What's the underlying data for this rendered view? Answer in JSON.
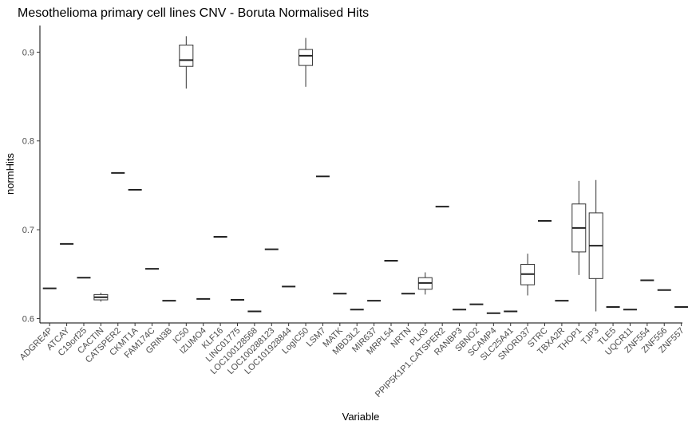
{
  "chart_data": {
    "type": "box",
    "title": "Mesothelioma primary cell lines CNV - Boruta Normalised Hits",
    "xlabel": "Variable",
    "ylabel": "normHits",
    "ylim": [
      0.595,
      0.93
    ],
    "yticks": [
      0.6,
      0.7,
      0.8,
      0.9
    ],
    "ytick_labels": [
      "0.6",
      "0.7",
      "0.8",
      "0.9"
    ],
    "grid": false,
    "categories": [
      "ADGRE4P",
      "ATCAY",
      "C19orf25",
      "CACTIN",
      "CATSPER2",
      "CKMT1A",
      "FAM174C",
      "GRIN3B",
      "IC50",
      "IZUMO4",
      "KLF16",
      "LINC01775",
      "LOC100128568",
      "LOC100288123",
      "LOC101928844",
      "LogIC50",
      "LSM7",
      "MATK",
      "MBD3L2",
      "MIR637",
      "MRPL54",
      "NRTN",
      "PLK5",
      "PPIP5K1P1.CATSPER2",
      "RANBP3",
      "SBNO2",
      "SCAMP4",
      "SLC25A41",
      "SNORD37",
      "STRC",
      "TBXA2R",
      "THOP1",
      "TJP3",
      "TLE5",
      "UQCR11",
      "ZNF554",
      "ZNF556",
      "ZNF557"
    ],
    "boxes": [
      {
        "min": 0.634,
        "q1": 0.634,
        "median": 0.634,
        "q3": 0.634,
        "max": 0.634
      },
      {
        "min": 0.684,
        "q1": 0.684,
        "median": 0.684,
        "q3": 0.684,
        "max": 0.684
      },
      {
        "min": 0.646,
        "q1": 0.646,
        "median": 0.646,
        "q3": 0.646,
        "max": 0.646
      },
      {
        "min": 0.619,
        "q1": 0.621,
        "median": 0.624,
        "q3": 0.627,
        "max": 0.629
      },
      {
        "min": 0.764,
        "q1": 0.764,
        "median": 0.764,
        "q3": 0.764,
        "max": 0.764
      },
      {
        "min": 0.745,
        "q1": 0.745,
        "median": 0.745,
        "q3": 0.745,
        "max": 0.745
      },
      {
        "min": 0.656,
        "q1": 0.656,
        "median": 0.656,
        "q3": 0.656,
        "max": 0.656
      },
      {
        "min": 0.62,
        "q1": 0.62,
        "median": 0.62,
        "q3": 0.62,
        "max": 0.62
      },
      {
        "min": 0.859,
        "q1": 0.884,
        "median": 0.891,
        "q3": 0.908,
        "max": 0.918
      },
      {
        "min": 0.622,
        "q1": 0.622,
        "median": 0.622,
        "q3": 0.622,
        "max": 0.622
      },
      {
        "min": 0.692,
        "q1": 0.692,
        "median": 0.692,
        "q3": 0.692,
        "max": 0.692
      },
      {
        "min": 0.621,
        "q1": 0.621,
        "median": 0.621,
        "q3": 0.621,
        "max": 0.621
      },
      {
        "min": 0.608,
        "q1": 0.608,
        "median": 0.608,
        "q3": 0.608,
        "max": 0.608
      },
      {
        "min": 0.678,
        "q1": 0.678,
        "median": 0.678,
        "q3": 0.678,
        "max": 0.678
      },
      {
        "min": 0.636,
        "q1": 0.636,
        "median": 0.636,
        "q3": 0.636,
        "max": 0.636
      },
      {
        "min": 0.861,
        "q1": 0.885,
        "median": 0.896,
        "q3": 0.903,
        "max": 0.916
      },
      {
        "min": 0.76,
        "q1": 0.76,
        "median": 0.76,
        "q3": 0.76,
        "max": 0.76
      },
      {
        "min": 0.628,
        "q1": 0.628,
        "median": 0.628,
        "q3": 0.628,
        "max": 0.628
      },
      {
        "min": 0.61,
        "q1": 0.61,
        "median": 0.61,
        "q3": 0.61,
        "max": 0.61
      },
      {
        "min": 0.62,
        "q1": 0.62,
        "median": 0.62,
        "q3": 0.62,
        "max": 0.62
      },
      {
        "min": 0.665,
        "q1": 0.665,
        "median": 0.665,
        "q3": 0.665,
        "max": 0.665
      },
      {
        "min": 0.628,
        "q1": 0.628,
        "median": 0.628,
        "q3": 0.628,
        "max": 0.628
      },
      {
        "min": 0.627,
        "q1": 0.633,
        "median": 0.64,
        "q3": 0.646,
        "max": 0.652
      },
      {
        "min": 0.726,
        "q1": 0.726,
        "median": 0.726,
        "q3": 0.726,
        "max": 0.726
      },
      {
        "min": 0.61,
        "q1": 0.61,
        "median": 0.61,
        "q3": 0.61,
        "max": 0.61
      },
      {
        "min": 0.616,
        "q1": 0.616,
        "median": 0.616,
        "q3": 0.616,
        "max": 0.616
      },
      {
        "min": 0.606,
        "q1": 0.606,
        "median": 0.606,
        "q3": 0.606,
        "max": 0.606
      },
      {
        "min": 0.608,
        "q1": 0.608,
        "median": 0.608,
        "q3": 0.608,
        "max": 0.608
      },
      {
        "min": 0.626,
        "q1": 0.638,
        "median": 0.65,
        "q3": 0.661,
        "max": 0.673
      },
      {
        "min": 0.71,
        "q1": 0.71,
        "median": 0.71,
        "q3": 0.71,
        "max": 0.71
      },
      {
        "min": 0.62,
        "q1": 0.62,
        "median": 0.62,
        "q3": 0.62,
        "max": 0.62
      },
      {
        "min": 0.649,
        "q1": 0.675,
        "median": 0.702,
        "q3": 0.729,
        "max": 0.755
      },
      {
        "min": 0.608,
        "q1": 0.645,
        "median": 0.682,
        "q3": 0.719,
        "max": 0.756
      },
      {
        "min": 0.613,
        "q1": 0.613,
        "median": 0.613,
        "q3": 0.613,
        "max": 0.613
      },
      {
        "min": 0.61,
        "q1": 0.61,
        "median": 0.61,
        "q3": 0.61,
        "max": 0.61
      },
      {
        "min": 0.643,
        "q1": 0.643,
        "median": 0.643,
        "q3": 0.643,
        "max": 0.643
      },
      {
        "min": 0.632,
        "q1": 0.632,
        "median": 0.632,
        "q3": 0.632,
        "max": 0.632
      },
      {
        "min": 0.613,
        "q1": 0.613,
        "median": 0.613,
        "q3": 0.613,
        "max": 0.613
      }
    ]
  }
}
